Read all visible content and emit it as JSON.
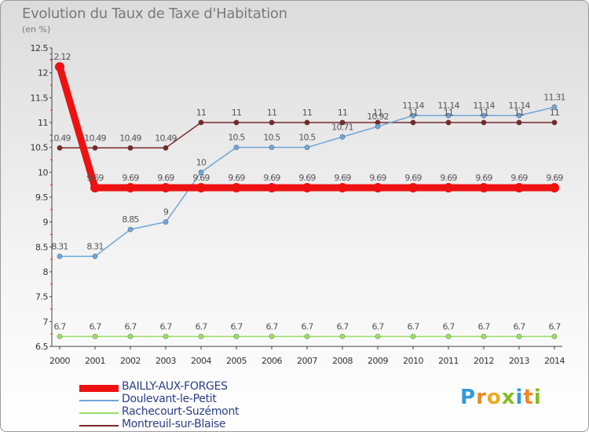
{
  "title": "Evolution du Taux de Taxe d'Habitation",
  "subtitle": "(en %)",
  "chart_data": {
    "type": "line",
    "title": "Evolution du Taux de Taxe d'Habitation",
    "ylabel": "(en %)",
    "xlabel": "",
    "ylim": [
      6.5,
      12.5
    ],
    "yticks": [
      6.5,
      7,
      7.5,
      8,
      8.5,
      9,
      9.5,
      10,
      10.5,
      11,
      11.5,
      12,
      12.5
    ],
    "ytick_labels": [
      "6.5",
      "7",
      "7.5",
      "8",
      "8.5",
      "9",
      "9.5",
      "10",
      "10.5",
      "11",
      "11.5",
      "12",
      "12.5"
    ],
    "categories": [
      "2000",
      "2001",
      "2002",
      "2003",
      "2004",
      "2005",
      "2006",
      "2007",
      "2008",
      "2009",
      "2010",
      "2011",
      "2012",
      "2013",
      "2014"
    ],
    "series": [
      {
        "name": "BAILLY-AUX-FORGES",
        "color": "#ee1111",
        "values": [
          12.12,
          9.69,
          9.69,
          9.69,
          9.69,
          9.69,
          9.69,
          9.69,
          9.69,
          9.69,
          9.69,
          9.69,
          9.69,
          9.69,
          9.69
        ],
        "labels": [
          "12.12",
          "9.69",
          "9.69",
          "9.69",
          "9.69",
          "9.69",
          "9.69",
          "9.69",
          "9.69",
          "9.69",
          "9.69",
          "9.69",
          "9.69",
          "9.69",
          "9.69"
        ]
      },
      {
        "name": "Doulevant-le-Petit",
        "color": "#6fa6d6",
        "values": [
          8.31,
          8.31,
          8.85,
          9,
          10,
          10.5,
          10.5,
          10.5,
          10.71,
          10.92,
          11.14,
          11.14,
          11.14,
          11.14,
          11.31
        ],
        "labels": [
          "8.31",
          "8.31",
          "8.85",
          "9",
          "10",
          "10.5",
          "10.5",
          "10.5",
          "10.71",
          "10.92",
          "11.14",
          "11.14",
          "11.14",
          "11.14",
          "11.31"
        ]
      },
      {
        "name": "Rachecourt-Suzémont",
        "color": "#99dd66",
        "values": [
          6.7,
          6.7,
          6.7,
          6.7,
          6.7,
          6.7,
          6.7,
          6.7,
          6.7,
          6.7,
          6.7,
          6.7,
          6.7,
          6.7,
          6.7
        ],
        "labels": [
          "6.7",
          "6.7",
          "6.7",
          "6.7",
          "6.7",
          "6.7",
          "6.7",
          "6.7",
          "6.7",
          "6.7",
          "6.7",
          "6.7",
          "6.7",
          "6.7",
          "6.7"
        ]
      },
      {
        "name": "Montreuil-sur-Blaise",
        "color": "#7a2a2a",
        "values": [
          10.49,
          10.49,
          10.49,
          10.49,
          11,
          11,
          11,
          11,
          11,
          11,
          11,
          11,
          11,
          11,
          11
        ],
        "labels": [
          "10.49",
          "10.49",
          "10.49",
          "10.49",
          "11",
          "11",
          "11",
          "11",
          "11",
          "11",
          "11",
          "11",
          "11",
          "11",
          "11"
        ]
      }
    ],
    "legend_position": "bottom-left",
    "grid": false
  },
  "logo": {
    "letters": [
      "P",
      "r",
      "o",
      "x",
      "i",
      "t",
      "i"
    ],
    "colors": [
      "#3399dd",
      "#ee8822",
      "#eeaa22",
      "#88bb22",
      "#3399dd",
      "#ee8822",
      "#88bb22"
    ]
  }
}
